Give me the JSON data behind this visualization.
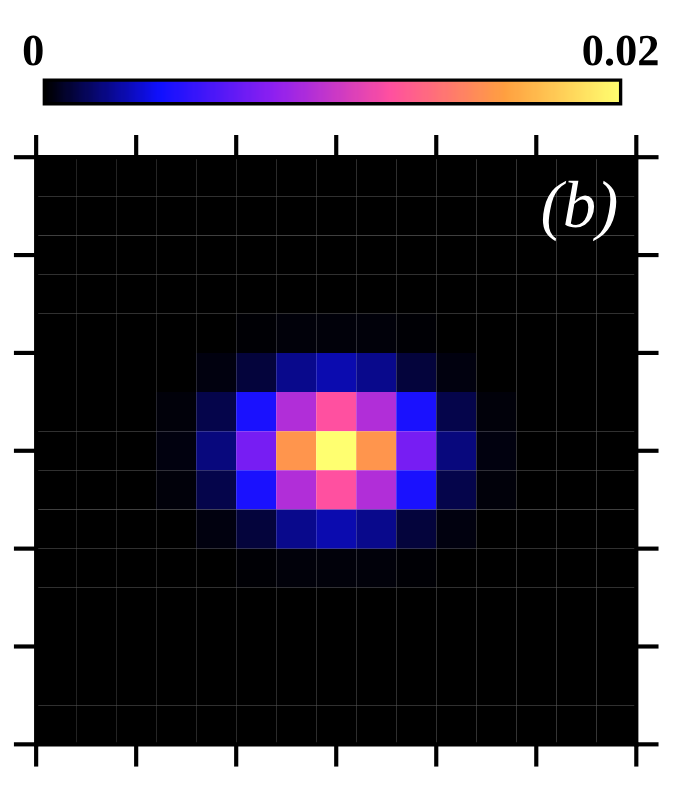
{
  "chart_data": {
    "type": "heatmap",
    "annotations": [
      "(b)"
    ],
    "categories": [
      null,
      null,
      null,
      null,
      null,
      null,
      null,
      null,
      null,
      null,
      null,
      null,
      null,
      null,
      null
    ],
    "y_categories": [
      null,
      null,
      null,
      null,
      null,
      null,
      null,
      null,
      null,
      null,
      null,
      null,
      null,
      null,
      null
    ],
    "cells": [
      [
        0,
        0,
        0,
        0,
        0,
        0,
        0,
        0,
        0,
        0,
        0,
        0,
        0,
        0,
        0
      ],
      [
        0,
        0,
        0,
        0,
        0,
        0,
        0,
        0,
        0,
        0,
        0,
        0,
        0,
        0,
        0
      ],
      [
        0,
        0,
        0,
        0,
        0,
        0,
        0,
        0,
        0,
        0,
        0,
        0,
        0,
        0,
        0
      ],
      [
        0,
        0,
        0,
        0,
        0,
        0,
        0,
        0,
        0,
        0,
        0,
        0,
        0,
        0,
        0
      ],
      [
        0,
        0,
        0,
        0,
        0,
        0.0001,
        0.0002,
        0.0002,
        0.0002,
        0.0001,
        0,
        0,
        0,
        0,
        0
      ],
      [
        0,
        0,
        0,
        0,
        0.0003,
        0.001,
        0.0022,
        0.0028,
        0.0022,
        0.001,
        0.0003,
        0,
        0,
        0,
        0
      ],
      [
        0,
        0,
        0,
        0.0002,
        0.0012,
        0.0043,
        0.0092,
        0.012,
        0.0092,
        0.0043,
        0.0012,
        0.0002,
        0,
        0,
        0
      ],
      [
        0,
        0,
        0,
        0.0003,
        0.002,
        0.0072,
        0.0154,
        0.02,
        0.0154,
        0.0072,
        0.002,
        0.0003,
        0,
        0,
        0
      ],
      [
        0,
        0,
        0,
        0.0002,
        0.0012,
        0.0043,
        0.0092,
        0.012,
        0.0092,
        0.0043,
        0.0012,
        0.0002,
        0,
        0,
        0
      ],
      [
        0,
        0,
        0,
        0,
        0.0003,
        0.001,
        0.0022,
        0.0028,
        0.0022,
        0.001,
        0.0003,
        0,
        0,
        0,
        0
      ],
      [
        0,
        0,
        0,
        0,
        0,
        0.0001,
        0.0002,
        0.0002,
        0.0002,
        0.0001,
        0,
        0,
        0,
        0,
        0
      ],
      [
        0,
        0,
        0,
        0,
        0,
        0,
        0,
        0,
        0,
        0,
        0,
        0,
        0,
        0,
        0
      ],
      [
        0,
        0,
        0,
        0,
        0,
        0,
        0,
        0,
        0,
        0,
        0,
        0,
        0,
        0,
        0
      ],
      [
        0,
        0,
        0,
        0,
        0,
        0,
        0,
        0,
        0,
        0,
        0,
        0,
        0,
        0,
        0
      ],
      [
        0,
        0,
        0,
        0,
        0,
        0,
        0,
        0,
        0,
        0,
        0,
        0,
        0,
        0,
        0
      ]
    ],
    "colors": [
      "#000000",
      "#1010ff",
      "#9020f0",
      "#ff50a0",
      "#ffa040",
      "#ffff70"
    ],
    "clim": [
      0,
      0.02
    ],
    "cticks": [
      0,
      0.02
    ],
    "tick_labels": false
  }
}
